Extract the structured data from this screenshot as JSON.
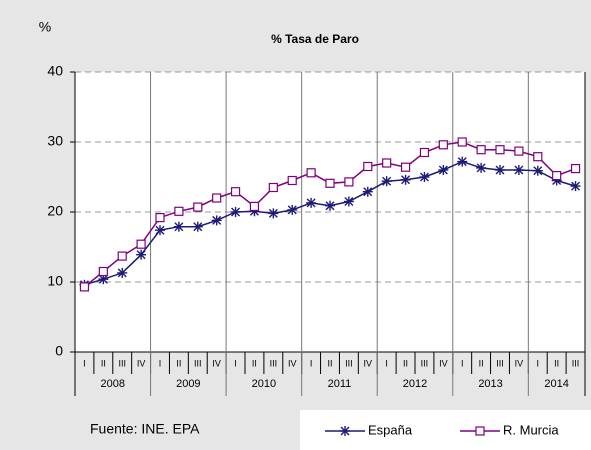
{
  "chart_data": {
    "type": "line",
    "title": "% Tasa de Paro",
    "y_label": "%",
    "source": "Fuente: INE. EPA",
    "categories": [
      "I",
      "II",
      "III",
      "IV",
      "I",
      "II",
      "III",
      "IV",
      "I",
      "II",
      "III",
      "IV",
      "I",
      "II",
      "III",
      "IV",
      "I",
      "II",
      "III",
      "IV",
      "I",
      "II",
      "III",
      "IV",
      "I",
      "II",
      "III"
    ],
    "years": [
      "2008",
      "2009",
      "2010",
      "2011",
      "2012",
      "2013",
      "2014"
    ],
    "series": [
      {
        "name": "España",
        "color": "#1c1c78",
        "marker": "asterisk",
        "values": [
          9.6,
          10.4,
          11.3,
          13.9,
          17.4,
          17.9,
          17.9,
          18.8,
          20.0,
          20.1,
          19.8,
          20.3,
          21.3,
          20.9,
          21.5,
          22.9,
          24.4,
          24.6,
          25.0,
          26.0,
          27.2,
          26.3,
          26.0,
          26.0,
          25.9,
          24.5,
          23.7
        ]
      },
      {
        "name": "R. Murcia",
        "color": "#800080",
        "marker": "square",
        "values": [
          9.3,
          11.5,
          13.7,
          15.4,
          19.2,
          20.1,
          20.7,
          22.0,
          22.9,
          20.8,
          23.5,
          24.5,
          25.6,
          24.1,
          24.3,
          26.5,
          27.0,
          26.4,
          28.5,
          29.6,
          30.0,
          28.9,
          28.9,
          28.7,
          27.9,
          25.2,
          26.2
        ]
      }
    ],
    "ylim": [
      0,
      40
    ],
    "yticks": [
      0,
      10,
      20,
      30,
      40
    ],
    "grid": true
  }
}
